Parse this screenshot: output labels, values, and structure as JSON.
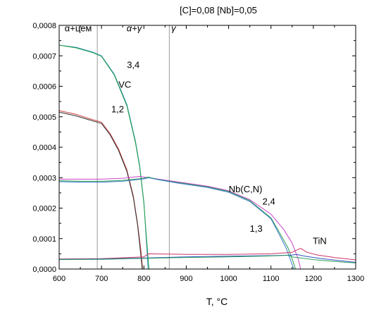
{
  "chart_data": {
    "type": "line",
    "title": "[C]=0,08 [Nb]=0,05",
    "xlabel": "T, °C",
    "ylabel": "",
    "xlim": [
      600,
      1300
    ],
    "ylim": [
      0,
      0.0008
    ],
    "x_ticks": [
      "600",
      "700",
      "800",
      "900",
      "1000",
      "1100",
      "1200",
      "1300"
    ],
    "y_ticks": [
      "0,0000",
      "0,0001",
      "0,0002",
      "0,0003",
      "0,0004",
      "0,0005",
      "0,0006",
      "0,0007",
      "0,0008"
    ],
    "grid": false,
    "legend": "none",
    "phase_boundaries": [
      {
        "x": 690,
        "color": "#999999"
      },
      {
        "x": 860,
        "color": "#999999"
      }
    ],
    "phase_labels": [
      {
        "text": "α+цем",
        "x": 645,
        "y": 0.00078
      },
      {
        "text": "α+γ",
        "x": 777,
        "y": 0.00078
      },
      {
        "text": "γ",
        "x": 870,
        "y": 0.00078
      }
    ],
    "annotations": [
      {
        "text": "3,4",
        "x": 775,
        "y": 0.00066
      },
      {
        "text": "VC",
        "x": 755,
        "y": 0.000595
      },
      {
        "text": "1,2",
        "x": 738,
        "y": 0.000515
      },
      {
        "text": "Nb(C,N)",
        "x": 1040,
        "y": 0.000252
      },
      {
        "text": "2,4",
        "x": 1095,
        "y": 0.000212
      },
      {
        "text": "1,3",
        "x": 1065,
        "y": 0.000122
      },
      {
        "text": "TiN",
        "x": 1215,
        "y": 8.2e-05
      }
    ],
    "series": [
      {
        "color": "#3a8fd0",
        "x": [
          600,
          640,
          680,
          700,
          730,
          760,
          780,
          790,
          800,
          805,
          810
        ],
        "y": [
          0.000735,
          0.000728,
          0.000712,
          0.0007,
          0.00064,
          0.00054,
          0.00042,
          0.00034,
          0.00022,
          0.00011,
          0.0
        ]
      },
      {
        "color": "#20a040",
        "x": [
          600,
          640,
          680,
          700,
          730,
          760,
          780,
          790,
          800,
          806,
          812
        ],
        "y": [
          0.000735,
          0.000726,
          0.00071,
          0.000698,
          0.000637,
          0.000535,
          0.000415,
          0.000335,
          0.000215,
          0.000105,
          0.0
        ]
      },
      {
        "color": "#d04040",
        "x": [
          600,
          640,
          680,
          700,
          720,
          740,
          760,
          775,
          785,
          793,
          797
        ],
        "y": [
          0.00052,
          0.000508,
          0.00049,
          0.000482,
          0.000445,
          0.000395,
          0.000325,
          0.00024,
          0.00015,
          6e-05,
          0.0
        ]
      },
      {
        "color": "#303030",
        "x": [
          600,
          640,
          680,
          700,
          720,
          740,
          760,
          775,
          785,
          792,
          796
        ],
        "y": [
          0.000515,
          0.000503,
          0.000486,
          0.000478,
          0.000441,
          0.00039,
          0.00032,
          0.000235,
          0.000145,
          5.5e-05,
          0.0
        ]
      },
      {
        "color": "#cc44cc",
        "x": [
          600,
          650,
          700,
          750,
          790,
          800,
          830,
          880,
          950,
          1000,
          1050,
          1100,
          1130,
          1150,
          1165,
          1170
        ],
        "y": [
          0.000295,
          0.000295,
          0.000295,
          0.000298,
          0.000304,
          0.000302,
          0.000296,
          0.000286,
          0.000272,
          0.000257,
          0.000228,
          0.00018,
          0.00013,
          8.5e-05,
          3e-05,
          0.0
        ]
      },
      {
        "color": "#2a9a50",
        "x": [
          600,
          650,
          700,
          750,
          800,
          810,
          830,
          880,
          950,
          1000,
          1050,
          1100,
          1120,
          1140,
          1152,
          1158
        ],
        "y": [
          0.00029,
          0.000288,
          0.000288,
          0.000291,
          0.000298,
          0.000302,
          0.000295,
          0.000284,
          0.00027,
          0.000255,
          0.000225,
          0.000168,
          0.00012,
          7e-05,
          2.5e-05,
          0.0
        ]
      },
      {
        "color": "#3a7acc",
        "x": [
          600,
          650,
          700,
          750,
          800,
          812,
          830,
          880,
          950,
          1000,
          1050,
          1100,
          1118,
          1136,
          1148,
          1154
        ],
        "y": [
          0.000287,
          0.000285,
          0.000285,
          0.000288,
          0.000296,
          0.0003,
          0.000294,
          0.000282,
          0.000268,
          0.000252,
          0.000222,
          0.000165,
          0.000118,
          6.8e-05,
          2.2e-05,
          0.0
        ]
      },
      {
        "color": "#cc3366",
        "x": [
          600,
          700,
          800,
          810,
          900,
          1000,
          1100,
          1150,
          1170,
          1185,
          1210,
          1250,
          1300
        ],
        "y": [
          3.3e-05,
          3.4e-05,
          4e-05,
          5e-05,
          4.8e-05,
          4.8e-05,
          5e-05,
          5.5e-05,
          6.8e-05,
          5.5e-05,
          4.6e-05,
          3.8e-05,
          3e-05
        ]
      },
      {
        "color": "#3050c0",
        "x": [
          600,
          700,
          800,
          900,
          1000,
          1100,
          1150,
          1160,
          1180,
          1220,
          1260,
          1300
        ],
        "y": [
          3.2e-05,
          3.3e-05,
          3.6e-05,
          4e-05,
          4.2e-05,
          4.4e-05,
          4.6e-05,
          4.8e-05,
          4.2e-05,
          3.4e-05,
          2.8e-05,
          2.2e-05
        ]
      },
      {
        "color": "#30a060",
        "x": [
          600,
          700,
          800,
          900,
          1000,
          1100,
          1140,
          1150,
          1200,
          1250,
          1300
        ],
        "y": [
          3.1e-05,
          3.2e-05,
          3.5e-05,
          3.8e-05,
          4e-05,
          4.3e-05,
          4.5e-05,
          4e-05,
          3.1e-05,
          2.5e-05,
          2e-05
        ]
      }
    ]
  }
}
